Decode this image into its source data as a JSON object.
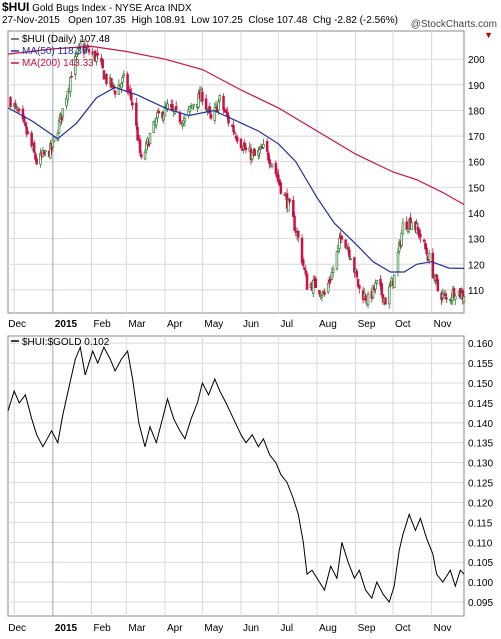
{
  "header": {
    "symbol": "$HUI",
    "name": "Gold Bugs Index - NYSE Arca",
    "exchange": "INDX",
    "date": "27-Nov-2015",
    "open_label": "Open",
    "open": "107.35",
    "high_label": "High",
    "high": "108.91",
    "low_label": "Low",
    "low": "107.25",
    "close_label": "Close",
    "close": "107.48",
    "chg_label": "Chg",
    "chg": "-2.82 (-2.56%)",
    "chg_icon": "down-triangle-icon",
    "brand": "@StockCharts.com"
  },
  "colors": {
    "up": "#2a7a2a",
    "down": "#cc1144",
    "ma50": "#1f2fa0",
    "ma200": "#cc1144",
    "ratio": "#000000",
    "grid": "#d9d9d9"
  },
  "chart_data": [
    {
      "type": "candlestick",
      "title": "$HUI (Daily) 107.48",
      "legend_placement": "top-left",
      "grid": true,
      "x_ticks": [
        "Dec",
        "2015",
        "Feb",
        "Mar",
        "Apr",
        "May",
        "Jun",
        "Jul",
        "Aug",
        "Sep",
        "Oct",
        "Nov"
      ],
      "y_ticks": [
        110,
        120,
        130,
        140,
        150,
        160,
        170,
        180,
        190,
        200
      ],
      "ylim": [
        101,
        211
      ],
      "x_range": [
        "2014-11-26",
        "2015-11-27"
      ],
      "series": [
        {
          "name": "$HUI (Daily) 107.48",
          "style": "candles",
          "points": [
            [
              "2014-11-28",
              184
            ],
            [
              "2014-12-05",
              178
            ],
            [
              "2014-12-12",
              170
            ],
            [
              "2014-12-19",
              160
            ],
            [
              "2014-12-31",
              165
            ],
            [
              "2015-01-09",
              180
            ],
            [
              "2015-01-16",
              195
            ],
            [
              "2015-01-23",
              205
            ],
            [
              "2015-01-30",
              203
            ],
            [
              "2015-02-06",
              200
            ],
            [
              "2015-02-13",
              192
            ],
            [
              "2015-02-20",
              188
            ],
            [
              "2015-02-27",
              192
            ],
            [
              "2015-03-06",
              183
            ],
            [
              "2015-03-13",
              160
            ],
            [
              "2015-03-20",
              170
            ],
            [
              "2015-03-27",
              178
            ],
            [
              "2015-04-03",
              181
            ],
            [
              "2015-04-10",
              178
            ],
            [
              "2015-04-17",
              176
            ],
            [
              "2015-04-24",
              183
            ],
            [
              "2015-05-01",
              186
            ],
            [
              "2015-05-08",
              176
            ],
            [
              "2015-05-15",
              184
            ],
            [
              "2015-05-22",
              176
            ],
            [
              "2015-05-29",
              170
            ],
            [
              "2015-06-05",
              164
            ],
            [
              "2015-06-12",
              162
            ],
            [
              "2015-06-19",
              165
            ],
            [
              "2015-06-26",
              160
            ],
            [
              "2015-07-03",
              150
            ],
            [
              "2015-07-10",
              142
            ],
            [
              "2015-07-17",
              130
            ],
            [
              "2015-07-24",
              112
            ],
            [
              "2015-07-31",
              112
            ],
            [
              "2015-08-07",
              108
            ],
            [
              "2015-08-14",
              118
            ],
            [
              "2015-08-21",
              132
            ],
            [
              "2015-08-28",
              124
            ],
            [
              "2015-09-04",
              110
            ],
            [
              "2015-09-11",
              106
            ],
            [
              "2015-09-18",
              112
            ],
            [
              "2015-09-25",
              106
            ],
            [
              "2015-10-02",
              115
            ],
            [
              "2015-10-09",
              135
            ],
            [
              "2015-10-16",
              137
            ],
            [
              "2015-10-23",
              131
            ],
            [
              "2015-10-30",
              122
            ],
            [
              "2015-11-06",
              110
            ],
            [
              "2015-11-13",
              106
            ],
            [
              "2015-11-20",
              110
            ],
            [
              "2015-11-27",
              107.48
            ]
          ]
        },
        {
          "name": "MA(50) 118.39",
          "style": "line",
          "points": [
            [
              "2014-11-26",
              181
            ],
            [
              "2014-12-15",
              176
            ],
            [
              "2015-01-05",
              169
            ],
            [
              "2015-01-20",
              175
            ],
            [
              "2015-02-05",
              185
            ],
            [
              "2015-02-20",
              189
            ],
            [
              "2015-03-10",
              186
            ],
            [
              "2015-04-01",
              181
            ],
            [
              "2015-04-20",
              178
            ],
            [
              "2015-05-10",
              180
            ],
            [
              "2015-05-28",
              176
            ],
            [
              "2015-06-15",
              172
            ],
            [
              "2015-07-01",
              167
            ],
            [
              "2015-07-15",
              160
            ],
            [
              "2015-08-01",
              146
            ],
            [
              "2015-08-15",
              136
            ],
            [
              "2015-09-01",
              128
            ],
            [
              "2015-09-15",
              121
            ],
            [
              "2015-09-29",
              117
            ],
            [
              "2015-10-10",
              117
            ],
            [
              "2015-10-20",
              120
            ],
            [
              "2015-11-01",
              121
            ],
            [
              "2015-11-15",
              118.5
            ],
            [
              "2015-11-27",
              118.39
            ]
          ]
        },
        {
          "name": "MA(200) 143.33",
          "style": "line",
          "points": [
            [
              "2014-11-26",
              202
            ],
            [
              "2015-01-01",
              204
            ],
            [
              "2015-02-01",
              205
            ],
            [
              "2015-03-01",
              203
            ],
            [
              "2015-04-01",
              200
            ],
            [
              "2015-05-01",
              196
            ],
            [
              "2015-06-01",
              188
            ],
            [
              "2015-07-01",
              181
            ],
            [
              "2015-08-01",
              172
            ],
            [
              "2015-09-01",
              163
            ],
            [
              "2015-10-01",
              156
            ],
            [
              "2015-10-20",
              153
            ],
            [
              "2015-11-10",
              148
            ],
            [
              "2015-11-27",
              143.33
            ]
          ]
        }
      ]
    },
    {
      "type": "line",
      "title": "$HUI:$GOLD 0.102",
      "legend_placement": "top-left",
      "grid": true,
      "x_ticks": [
        "Dec",
        "2015",
        "Feb",
        "Mar",
        "Apr",
        "May",
        "Jun",
        "Jul",
        "Aug",
        "Sep",
        "Oct",
        "Nov"
      ],
      "y_ticks": [
        0.095,
        0.1,
        0.105,
        0.11,
        0.115,
        0.12,
        0.125,
        0.13,
        0.135,
        0.14,
        0.145,
        0.15,
        0.155,
        0.16
      ],
      "ylim": [
        0.0915,
        0.1618
      ],
      "x_range": [
        "2014-11-26",
        "2015-11-27"
      ],
      "series": [
        {
          "name": "$HUI:$GOLD 0.102",
          "points": [
            [
              "2014-11-26",
              0.143
            ],
            [
              "2014-12-01",
              0.148
            ],
            [
              "2014-12-05",
              0.145
            ],
            [
              "2014-12-10",
              0.147
            ],
            [
              "2014-12-15",
              0.141
            ],
            [
              "2014-12-19",
              0.137
            ],
            [
              "2014-12-24",
              0.134
            ],
            [
              "2014-12-31",
              0.138
            ],
            [
              "2015-01-05",
              0.135
            ],
            [
              "2015-01-09",
              0.142
            ],
            [
              "2015-01-14",
              0.149
            ],
            [
              "2015-01-19",
              0.156
            ],
            [
              "2015-01-23",
              0.159
            ],
            [
              "2015-01-27",
              0.152
            ],
            [
              "2015-02-02",
              0.158
            ],
            [
              "2015-02-06",
              0.155
            ],
            [
              "2015-02-11",
              0.159
            ],
            [
              "2015-02-16",
              0.156
            ],
            [
              "2015-02-20",
              0.153
            ],
            [
              "2015-02-25",
              0.156
            ],
            [
              "2015-03-02",
              0.158
            ],
            [
              "2015-03-06",
              0.151
            ],
            [
              "2015-03-11",
              0.14
            ],
            [
              "2015-03-16",
              0.134
            ],
            [
              "2015-03-20",
              0.139
            ],
            [
              "2015-03-25",
              0.135
            ],
            [
              "2015-03-30",
              0.141
            ],
            [
              "2015-04-03",
              0.146
            ],
            [
              "2015-04-08",
              0.141
            ],
            [
              "2015-04-13",
              0.138
            ],
            [
              "2015-04-17",
              0.136
            ],
            [
              "2015-04-22",
              0.141
            ],
            [
              "2015-04-27",
              0.145
            ],
            [
              "2015-05-01",
              0.15
            ],
            [
              "2015-05-06",
              0.147
            ],
            [
              "2015-05-11",
              0.151
            ],
            [
              "2015-05-15",
              0.148
            ],
            [
              "2015-05-20",
              0.145
            ],
            [
              "2015-05-26",
              0.141
            ],
            [
              "2015-06-01",
              0.137
            ],
            [
              "2015-06-05",
              0.135
            ],
            [
              "2015-06-10",
              0.137
            ],
            [
              "2015-06-15",
              0.134
            ],
            [
              "2015-06-19",
              0.136
            ],
            [
              "2015-06-24",
              0.132
            ],
            [
              "2015-06-29",
              0.13
            ],
            [
              "2015-07-03",
              0.127
            ],
            [
              "2015-07-08",
              0.125
            ],
            [
              "2015-07-13",
              0.121
            ],
            [
              "2015-07-17",
              0.117
            ],
            [
              "2015-07-21",
              0.11
            ],
            [
              "2015-07-24",
              0.102
            ],
            [
              "2015-07-28",
              0.103
            ],
            [
              "2015-08-03",
              0.1
            ],
            [
              "2015-08-07",
              0.098
            ],
            [
              "2015-08-12",
              0.104
            ],
            [
              "2015-08-17",
              0.101
            ],
            [
              "2015-08-21",
              0.11
            ],
            [
              "2015-08-26",
              0.105
            ],
            [
              "2015-08-31",
              0.101
            ],
            [
              "2015-09-04",
              0.103
            ],
            [
              "2015-09-09",
              0.098
            ],
            [
              "2015-09-14",
              0.096
            ],
            [
              "2015-09-18",
              0.1
            ],
            [
              "2015-09-23",
              0.097
            ],
            [
              "2015-09-28",
              0.095
            ],
            [
              "2015-10-02",
              0.099
            ],
            [
              "2015-10-06",
              0.108
            ],
            [
              "2015-10-09",
              0.112
            ],
            [
              "2015-10-14",
              0.117
            ],
            [
              "2015-10-19",
              0.113
            ],
            [
              "2015-10-23",
              0.116
            ],
            [
              "2015-10-28",
              0.111
            ],
            [
              "2015-11-02",
              0.107
            ],
            [
              "2015-11-05",
              0.102
            ],
            [
              "2015-11-10",
              0.1
            ],
            [
              "2015-11-16",
              0.103
            ],
            [
              "2015-11-20",
              0.099
            ],
            [
              "2015-11-24",
              0.103
            ],
            [
              "2015-11-27",
              0.102
            ]
          ]
        }
      ]
    }
  ]
}
